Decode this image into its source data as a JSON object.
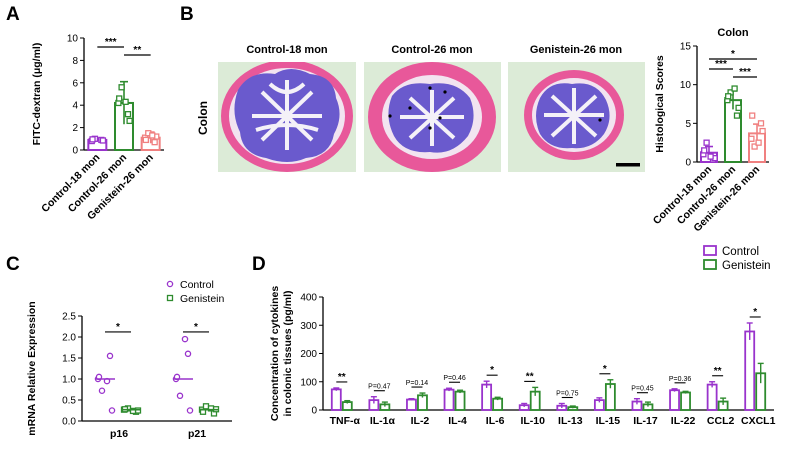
{
  "colors": {
    "purple": "#9933CC",
    "green": "#2E8B2E",
    "salmon": "#F08080",
    "tissue_pink": "#E8589A",
    "tissue_purple": "#6A5ACD",
    "background_green": "#DCEBD7"
  },
  "panels": {
    "A": {
      "label": "A"
    },
    "B": {
      "label": "B",
      "row_label": "Colon",
      "image_titles": [
        "Control-18 mon",
        "Control-26 mon",
        "Genistein-26 mon"
      ],
      "image_descriptions": [
        "histology-control-18",
        "histology-control-26",
        "histology-genistein-26"
      ]
    },
    "C": {
      "label": "C"
    },
    "D": {
      "label": "D"
    }
  },
  "chart_data": [
    {
      "id": "A",
      "type": "bar",
      "title": "",
      "ylabel": "FITC-dextran (μg/ml)",
      "ylim": [
        0,
        10
      ],
      "yticks": [
        0,
        2,
        4,
        6,
        8,
        10
      ],
      "categories": [
        "Control-18 mon",
        "Control-26 mon",
        "Genistein-26 mon"
      ],
      "values": [
        0.9,
        4.2,
        1.1
      ],
      "errors": [
        0.15,
        1.9,
        0.5
      ],
      "points": [
        [
          0.8,
          0.9,
          1.0,
          0.85,
          0.95
        ],
        [
          4.2,
          3.2,
          5.6,
          2.6,
          4.6,
          4.3
        ],
        [
          1.1,
          0.7,
          1.5,
          1.2,
          0.9,
          1.3
        ]
      ],
      "significance": [
        {
          "pair": [
            0,
            1
          ],
          "label": "***"
        },
        {
          "pair": [
            1,
            2
          ],
          "label": "**"
        }
      ]
    },
    {
      "id": "B",
      "type": "bar",
      "title": "Colon",
      "ylabel": "Histological Scores",
      "ylim": [
        0,
        15
      ],
      "yticks": [
        0,
        5,
        10,
        15
      ],
      "categories": [
        "Control-18 mon",
        "Control-26 mon",
        "Genistein-26 mon"
      ],
      "values": [
        1.2,
        8.0,
        3.7
      ],
      "errors": [
        0.8,
        1.2,
        1.2
      ],
      "points": [
        [
          1.0,
          0.3,
          2.5,
          0.5,
          1.5,
          0.7
        ],
        [
          8.0,
          6.0,
          9.0,
          7.0,
          8.5,
          9.5
        ],
        [
          3.0,
          5.0,
          2.0,
          4.0,
          6.0,
          2.5
        ]
      ],
      "significance": [
        {
          "pair": [
            0,
            2
          ],
          "label": "*"
        },
        {
          "pair": [
            0,
            1
          ],
          "label": "***"
        },
        {
          "pair": [
            1,
            2
          ],
          "label": "***"
        }
      ]
    },
    {
      "id": "C",
      "type": "scatter",
      "ylabel": "mRNA Relative Expression",
      "ylim": [
        0,
        2.5
      ],
      "yticks": [
        "0.0",
        "0.5",
        "1.0",
        "1.5",
        "2.0",
        "2.5"
      ],
      "categories": [
        "p16",
        "p21"
      ],
      "legend": [
        "Control",
        "Genistein"
      ],
      "series": [
        {
          "name": "Control",
          "marker": "circle",
          "points": [
            [
              1.0,
              1.55,
              0.72,
              0.25,
              1.05,
              0.95
            ],
            [
              1.0,
              1.6,
              0.6,
              0.25,
              1.05,
              1.95
            ]
          ],
          "means": [
            1.0,
            1.0
          ]
        },
        {
          "name": "Genistein",
          "marker": "square",
          "points": [
            [
              0.27,
              0.22,
              0.3,
              0.25,
              0.28,
              0.24
            ],
            [
              0.27,
              0.18,
              0.35,
              0.28,
              0.22,
              0.3
            ]
          ],
          "means": [
            0.27,
            0.27
          ]
        }
      ],
      "significance": [
        {
          "category": 0,
          "label": "*"
        },
        {
          "category": 1,
          "label": "*"
        }
      ]
    },
    {
      "id": "D",
      "type": "bar",
      "ylabel": "Concentration of cytokines in colonic tissues (pg/ml)",
      "ylabel_lines": [
        "Concentration of cytokines",
        "in colonic tissues (pg/ml)"
      ],
      "ylim": [
        0,
        400
      ],
      "yticks": [
        0,
        100,
        200,
        300,
        400
      ],
      "categories": [
        "TNF-α",
        "IL-1α",
        "IL-2",
        "IL-4",
        "IL-6",
        "IL-10",
        "IL-13",
        "IL-15",
        "IL-17",
        "IL-22",
        "CCL2",
        "CXCL1"
      ],
      "legend": [
        "Control",
        "Genistein"
      ],
      "series": [
        {
          "name": "Control",
          "values": [
            73,
            35,
            37,
            72,
            90,
            17,
            15,
            35,
            30,
            70,
            90,
            278
          ],
          "errors": [
            5,
            12,
            3,
            5,
            12,
            6,
            8,
            8,
            10,
            5,
            10,
            30
          ]
        },
        {
          "name": "Genistein",
          "values": [
            28,
            20,
            52,
            65,
            40,
            65,
            10,
            92,
            20,
            62,
            30,
            130
          ],
          "errors": [
            5,
            8,
            8,
            5,
            5,
            15,
            4,
            15,
            8,
            4,
            12,
            35
          ]
        }
      ],
      "annotations": [
        "**",
        "P=0.47",
        "P=0.14",
        "P=0.46",
        "*",
        "**",
        "P=0.75",
        "*",
        "P=0.45",
        "P=0.36",
        "**",
        "*"
      ]
    }
  ]
}
